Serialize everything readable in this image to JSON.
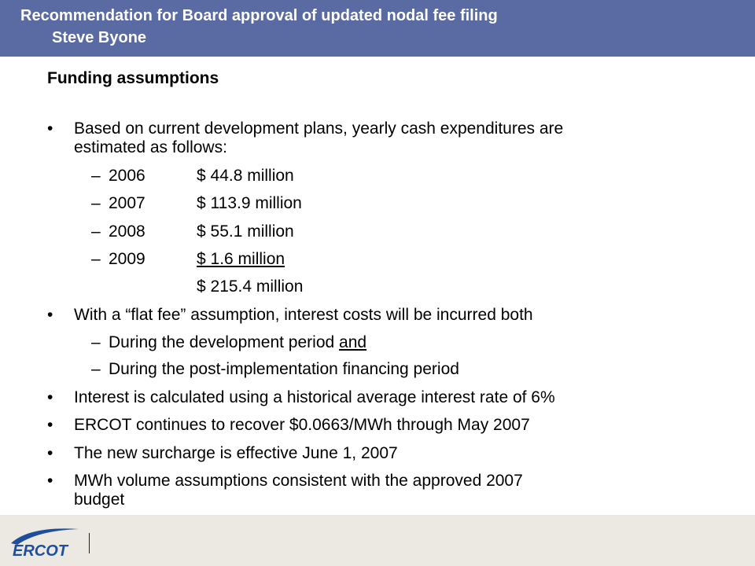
{
  "header": {
    "title": "Recommendation for Board approval of updated nodal fee filing",
    "presenter": "Steve Byone"
  },
  "subtitle": "Funding assumptions",
  "bullets": {
    "b1_line1": "Based on current development plans, yearly cash expenditures are",
    "b1_line2": "estimated as follows:",
    "expenditures": [
      {
        "year": "2006",
        "amount": "$   44.8 million"
      },
      {
        "year": "2007",
        "amount": "$ 113.9 million"
      },
      {
        "year": "2008",
        "amount": "$   55.1 million"
      },
      {
        "year": "2009",
        "amount": "$     1.6 million"
      }
    ],
    "total": "$ 215.4 million",
    "b2": "With a “flat fee” assumption, interest costs will be incurred both",
    "b2_sub1_pre": "During the development period ",
    "b2_sub1_emph": "and",
    "b2_sub2": "During the post-implementation financing period",
    "b3": "Interest is calculated using a historical average interest rate of 6%",
    "b4": "ERCOT continues to recover $0.0663/MWh through May 2007",
    "b5": "The new surcharge is effective June 1, 2007",
    "b6_line1": "MWh volume assumptions consistent with the approved 2007",
    "b6_line2": "budget",
    "bullet_char": "•",
    "dash_char": "–"
  },
  "footer": {
    "logo_text": "ERCOT"
  },
  "colors": {
    "header_bg": "#5a6aa2",
    "footer_bg": "#ebe9e2",
    "logo_blue": "#1f4e9c"
  }
}
